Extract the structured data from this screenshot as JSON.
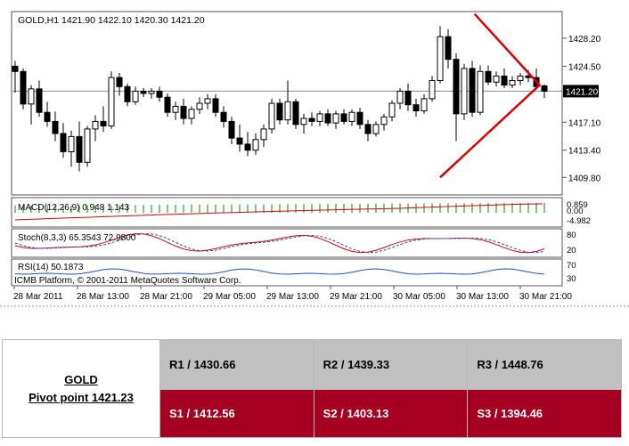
{
  "chart_data": {
    "type": "candlestick",
    "symbol_header": "GOLD,H1  1421.90 1422.10 1420.30 1421.20",
    "price_axis": {
      "range": [
        1407.6,
        1431.6
      ],
      "ticks": [
        "1428.20",
        "1424.50",
        "1417.10",
        "1413.40",
        "1409.80"
      ]
    },
    "current_price": "1421.20",
    "time_labels": [
      "28 Mar 2011",
      "28 Mar 13:00",
      "28 Mar 21:00",
      "29 Mar 05:00",
      "29 Mar 13:00",
      "29 Mar 21:00",
      "30 Mar 05:00",
      "30 Mar 13:00",
      "30 Mar 21:00"
    ],
    "candles": [
      {
        "o": 1424.5,
        "h": 1425.2,
        "l": 1421.0,
        "c": 1423.8
      },
      {
        "o": 1423.8,
        "h": 1424.2,
        "l": 1418.8,
        "c": 1419.5
      },
      {
        "o": 1419.5,
        "h": 1422.0,
        "l": 1416.8,
        "c": 1421.5
      },
      {
        "o": 1421.5,
        "h": 1422.6,
        "l": 1417.8,
        "c": 1418.4
      },
      {
        "o": 1418.4,
        "h": 1419.8,
        "l": 1416.5,
        "c": 1417.2
      },
      {
        "o": 1417.2,
        "h": 1418.5,
        "l": 1414.6,
        "c": 1415.6
      },
      {
        "o": 1415.6,
        "h": 1417.0,
        "l": 1412.4,
        "c": 1413.2
      },
      {
        "o": 1413.2,
        "h": 1416.0,
        "l": 1411.2,
        "c": 1415.2
      },
      {
        "o": 1415.2,
        "h": 1417.2,
        "l": 1410.6,
        "c": 1411.8
      },
      {
        "o": 1411.8,
        "h": 1416.6,
        "l": 1411.2,
        "c": 1416.2
      },
      {
        "o": 1416.2,
        "h": 1418.0,
        "l": 1414.6,
        "c": 1417.2
      },
      {
        "o": 1417.2,
        "h": 1419.2,
        "l": 1415.8,
        "c": 1416.6
      },
      {
        "o": 1416.6,
        "h": 1423.8,
        "l": 1416.2,
        "c": 1423.0
      },
      {
        "o": 1423.0,
        "h": 1423.6,
        "l": 1420.6,
        "c": 1421.8
      },
      {
        "o": 1421.8,
        "h": 1422.2,
        "l": 1419.2,
        "c": 1419.8
      },
      {
        "o": 1419.8,
        "h": 1421.8,
        "l": 1419.4,
        "c": 1421.2
      },
      {
        "o": 1421.2,
        "h": 1421.6,
        "l": 1420.4,
        "c": 1420.9
      },
      {
        "o": 1420.9,
        "h": 1421.6,
        "l": 1420.2,
        "c": 1421.2
      },
      {
        "o": 1421.2,
        "h": 1421.8,
        "l": 1419.8,
        "c": 1420.4
      },
      {
        "o": 1420.4,
        "h": 1420.9,
        "l": 1417.8,
        "c": 1418.4
      },
      {
        "o": 1418.4,
        "h": 1419.8,
        "l": 1417.4,
        "c": 1419.2
      },
      {
        "o": 1419.2,
        "h": 1420.2,
        "l": 1416.8,
        "c": 1417.6
      },
      {
        "o": 1417.6,
        "h": 1419.2,
        "l": 1416.8,
        "c": 1418.8
      },
      {
        "o": 1418.8,
        "h": 1420.4,
        "l": 1418.2,
        "c": 1419.6
      },
      {
        "o": 1419.6,
        "h": 1420.8,
        "l": 1418.8,
        "c": 1420.2
      },
      {
        "o": 1420.2,
        "h": 1420.8,
        "l": 1417.8,
        "c": 1418.4
      },
      {
        "o": 1418.4,
        "h": 1419.2,
        "l": 1416.4,
        "c": 1417.2
      },
      {
        "o": 1417.2,
        "h": 1417.8,
        "l": 1414.2,
        "c": 1415.0
      },
      {
        "o": 1415.0,
        "h": 1416.8,
        "l": 1413.2,
        "c": 1414.2
      },
      {
        "o": 1414.2,
        "h": 1415.8,
        "l": 1412.6,
        "c": 1413.4
      },
      {
        "o": 1413.4,
        "h": 1415.6,
        "l": 1412.8,
        "c": 1414.8
      },
      {
        "o": 1414.8,
        "h": 1416.8,
        "l": 1413.8,
        "c": 1416.2
      },
      {
        "o": 1416.2,
        "h": 1420.2,
        "l": 1415.6,
        "c": 1419.6
      },
      {
        "o": 1419.6,
        "h": 1420.2,
        "l": 1416.8,
        "c": 1417.4
      },
      {
        "o": 1417.4,
        "h": 1422.6,
        "l": 1416.8,
        "c": 1419.8
      },
      {
        "o": 1419.8,
        "h": 1420.2,
        "l": 1416.2,
        "c": 1416.8
      },
      {
        "o": 1416.8,
        "h": 1418.2,
        "l": 1415.6,
        "c": 1417.6
      },
      {
        "o": 1417.6,
        "h": 1418.4,
        "l": 1416.6,
        "c": 1417.2
      },
      {
        "o": 1417.2,
        "h": 1418.6,
        "l": 1416.6,
        "c": 1418.2
      },
      {
        "o": 1418.2,
        "h": 1418.8,
        "l": 1416.6,
        "c": 1417.0
      },
      {
        "o": 1417.0,
        "h": 1418.6,
        "l": 1416.2,
        "c": 1418.2
      },
      {
        "o": 1418.2,
        "h": 1418.8,
        "l": 1416.8,
        "c": 1417.2
      },
      {
        "o": 1417.2,
        "h": 1418.8,
        "l": 1416.6,
        "c": 1418.4
      },
      {
        "o": 1418.4,
        "h": 1419.0,
        "l": 1416.2,
        "c": 1416.8
      },
      {
        "o": 1416.8,
        "h": 1417.4,
        "l": 1414.6,
        "c": 1415.6
      },
      {
        "o": 1415.6,
        "h": 1417.2,
        "l": 1415.2,
        "c": 1416.8
      },
      {
        "o": 1416.8,
        "h": 1418.2,
        "l": 1416.0,
        "c": 1417.8
      },
      {
        "o": 1417.8,
        "h": 1420.0,
        "l": 1417.2,
        "c": 1419.6
      },
      {
        "o": 1419.6,
        "h": 1421.6,
        "l": 1418.8,
        "c": 1421.2
      },
      {
        "o": 1421.2,
        "h": 1422.2,
        "l": 1418.6,
        "c": 1419.4
      },
      {
        "o": 1419.4,
        "h": 1420.2,
        "l": 1417.8,
        "c": 1418.6
      },
      {
        "o": 1418.6,
        "h": 1420.8,
        "l": 1418.2,
        "c": 1420.2
      },
      {
        "o": 1420.2,
        "h": 1423.2,
        "l": 1419.8,
        "c": 1422.6
      },
      {
        "o": 1422.6,
        "h": 1429.8,
        "l": 1422.2,
        "c": 1428.4
      },
      {
        "o": 1428.4,
        "h": 1429.4,
        "l": 1424.2,
        "c": 1425.4
      },
      {
        "o": 1425.4,
        "h": 1426.2,
        "l": 1414.6,
        "c": 1418.2
      },
      {
        "o": 1418.2,
        "h": 1424.8,
        "l": 1417.4,
        "c": 1424.2
      },
      {
        "o": 1424.2,
        "h": 1425.2,
        "l": 1417.8,
        "c": 1418.4
      },
      {
        "o": 1418.4,
        "h": 1424.6,
        "l": 1418.0,
        "c": 1423.8
      },
      {
        "o": 1423.8,
        "h": 1424.6,
        "l": 1422.0,
        "c": 1422.4
      },
      {
        "o": 1422.4,
        "h": 1423.8,
        "l": 1421.8,
        "c": 1423.2
      },
      {
        "o": 1423.2,
        "h": 1424.2,
        "l": 1421.6,
        "c": 1422.0
      },
      {
        "o": 1422.0,
        "h": 1423.2,
        "l": 1421.6,
        "c": 1422.6
      },
      {
        "o": 1422.6,
        "h": 1423.6,
        "l": 1422.0,
        "c": 1423.2
      },
      {
        "o": 1423.2,
        "h": 1424.0,
        "l": 1422.4,
        "c": 1423.0
      },
      {
        "o": 1423.0,
        "h": 1424.2,
        "l": 1421.4,
        "c": 1421.8
      },
      {
        "o": 1421.9,
        "h": 1422.1,
        "l": 1420.3,
        "c": 1421.2
      }
    ],
    "triangle": {
      "points": [
        {
          "i": 57.3,
          "p": 1431.4
        },
        {
          "i": 65.4,
          "p": 1422.0
        },
        {
          "i": 53.0,
          "p": 1409.8
        }
      ]
    },
    "indicators": {
      "macd": {
        "label": "MACD(12,26,9) 0.948 1.143",
        "axis_ticks": [
          "0.859",
          "0.00",
          "-4.982"
        ]
      },
      "stoch": {
        "label": "Stoch(8,3,3) 65.3543 72.9800",
        "axis_ticks": [
          "80",
          "20"
        ]
      },
      "rsi": {
        "label": "RSI(14) 50.1873",
        "axis_ticks": [
          "70",
          "30"
        ]
      }
    },
    "watermark": "ICMB Platform, © 2001-2011 MetaQuotes Software Corp."
  },
  "pivot_table": {
    "symbol": "GOLD",
    "pivot": "Pivot point 1421.23",
    "resistance": [
      "R1 / 1430.66",
      "R2 / 1439.33",
      "R3 / 1448.76"
    ],
    "support": [
      "S1 / 1412.56",
      "S2 / 1403.13",
      "S3 / 1394.46"
    ]
  }
}
